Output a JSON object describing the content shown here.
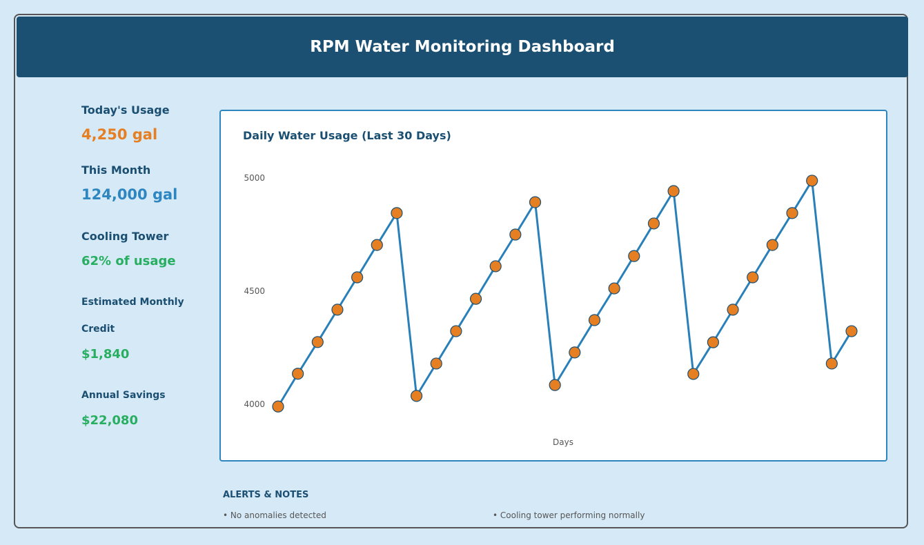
{
  "header": {
    "title": "RPM Water Monitoring Dashboard"
  },
  "stats": [
    {
      "label": "Today's Usage",
      "value": "4,250 gal",
      "color": "#e67e22"
    },
    {
      "label": "This Month",
      "value": "124,000 gal",
      "color": "#2e86c1"
    },
    {
      "label": "Cooling Tower",
      "value": "62% of usage",
      "color": "#27ae60"
    },
    {
      "label": "Estimated Monthly",
      "label2": "Credit",
      "value": "$1,840",
      "color": "#27ae60"
    },
    {
      "label": "Annual Savings",
      "value": "$22,080",
      "color": "#27ae60"
    }
  ],
  "alerts": {
    "title": "ALERTS & NOTES",
    "items": [
      "• No anomalies detected",
      "• Cooling tower performing normally"
    ]
  },
  "chart_data": {
    "type": "line",
    "title": "Daily Water Usage (Last 30 Days)",
    "xlabel": "Days",
    "ylabel": "",
    "x": [
      1,
      2,
      3,
      4,
      5,
      6,
      7,
      8,
      9,
      10,
      11,
      12,
      13,
      14,
      15,
      16,
      17,
      18,
      19,
      20,
      21,
      22,
      23,
      24,
      25,
      26,
      27,
      28,
      29,
      30
    ],
    "values": [
      3990,
      4135,
      4275,
      4418,
      4561,
      4704,
      4845,
      4037,
      4180,
      4323,
      4466,
      4610,
      4750,
      4893,
      4085,
      4229,
      4372,
      4512,
      4655,
      4799,
      4942,
      4134,
      4274,
      4418,
      4561,
      4704,
      4845,
      4988,
      4180,
      4323
    ],
    "yticks": [
      4000,
      4500,
      5000
    ],
    "line_color": "#2980b9",
    "marker_color": "#e67e22",
    "grid": false
  }
}
